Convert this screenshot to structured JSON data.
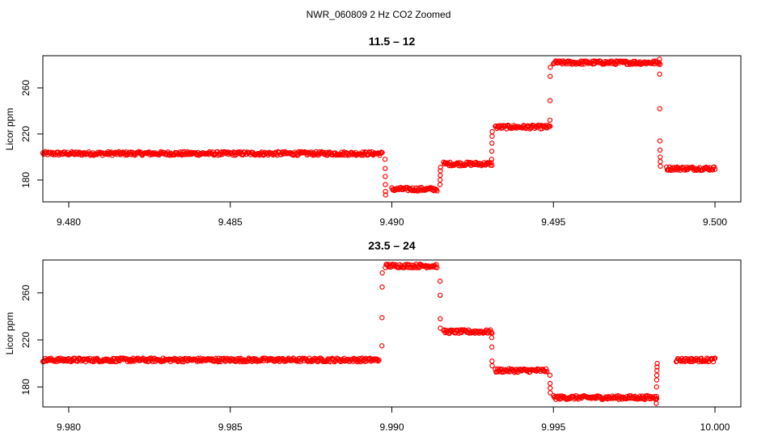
{
  "figure": {
    "title": "NWR_060809  2 Hz CO2 Zoomed"
  },
  "chart_data": [
    {
      "type": "scatter",
      "title": "11.5 – 12",
      "xlabel": "",
      "ylabel": "Licor ppm",
      "xlim": [
        9.4792,
        9.5008
      ],
      "ylim": [
        161,
        288
      ],
      "xticks": [
        "9.480",
        "9.485",
        "9.490",
        "9.495",
        "9.500"
      ],
      "xtick_values": [
        9.48,
        9.485,
        9.49,
        9.495,
        9.5
      ],
      "yticks": [
        "180",
        "220",
        "260"
      ],
      "ytick_values": [
        180,
        220,
        260
      ],
      "grid": false,
      "marker": "open-circle",
      "color": "#ff0000",
      "segments": [
        {
          "x_start": 9.4792,
          "x_end": 9.4897,
          "y": 203
        },
        {
          "x_start": 9.49,
          "x_end": 9.4914,
          "y": 172
        },
        {
          "x_start": 9.4916,
          "x_end": 9.4931,
          "y": 194
        },
        {
          "x_start": 9.4932,
          "x_end": 9.4949,
          "y": 226
        },
        {
          "x_start": 9.495,
          "x_end": 9.4983,
          "y": 282
        },
        {
          "x_start": 9.4985,
          "x_end": 9.5,
          "y": 190
        }
      ],
      "transitions": [
        {
          "x": 9.4898,
          "y": [
            198,
            190,
            183,
            176,
            170,
            167
          ]
        },
        {
          "x": 9.4915,
          "y": [
            176,
            180,
            184,
            188,
            191
          ]
        },
        {
          "x": 9.4931,
          "y": [
            198,
            205,
            212,
            218,
            222
          ]
        },
        {
          "x": 9.4949,
          "y": [
            232,
            249,
            270,
            278
          ]
        },
        {
          "x": 9.4983,
          "y": [
            285,
            272,
            242,
            214,
            206,
            200,
            196,
            192
          ]
        }
      ]
    },
    {
      "type": "scatter",
      "title": "23.5 – 24",
      "xlabel": "",
      "ylabel": "Licor ppm",
      "xlim": [
        9.9792,
        10.0008
      ],
      "ylim": [
        163,
        288
      ],
      "xticks": [
        "9.980",
        "9.985",
        "9.990",
        "9.995",
        "10.000"
      ],
      "xtick_values": [
        9.98,
        9.985,
        9.99,
        9.995,
        10.0
      ],
      "yticks": [
        "180",
        "220",
        "260"
      ],
      "ytick_values": [
        180,
        220,
        260
      ],
      "grid": false,
      "marker": "open-circle",
      "color": "#ff0000",
      "segments": [
        {
          "x_start": 9.9792,
          "x_end": 9.9896,
          "y": 203
        },
        {
          "x_start": 9.9898,
          "x_end": 9.9914,
          "y": 283
        },
        {
          "x_start": 9.9916,
          "x_end": 9.9931,
          "y": 227
        },
        {
          "x_start": 9.9932,
          "x_end": 9.9948,
          "y": 194
        },
        {
          "x_start": 9.995,
          "x_end": 9.9982,
          "y": 171
        },
        {
          "x_start": 9.9988,
          "x_end": 10.0,
          "y": 203
        }
      ],
      "transitions": [
        {
          "x": 9.9897,
          "y": [
            215,
            239,
            265,
            277
          ]
        },
        {
          "x": 9.9915,
          "y": [
            270,
            258,
            238,
            230
          ]
        },
        {
          "x": 9.9931,
          "y": [
            222,
            214,
            202,
            198
          ]
        },
        {
          "x": 9.9949,
          "y": [
            190,
            183,
            179,
            175
          ]
        },
        {
          "x": 9.9982,
          "y": [
            166,
            172,
            180,
            186,
            190,
            194,
            197,
            200
          ]
        }
      ]
    }
  ]
}
